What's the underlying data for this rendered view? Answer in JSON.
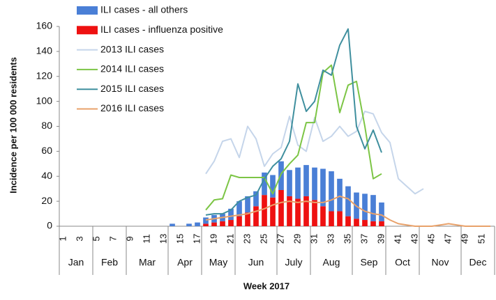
{
  "chart_data": {
    "type": "bar_line",
    "y_label": "Incidence per 100 000 residents",
    "x_label": "Week 2017",
    "categories": [
      "1",
      null,
      "3",
      null,
      "5",
      null,
      "7",
      null,
      "9",
      null,
      "11",
      null,
      "13",
      null,
      "15",
      null,
      "17",
      null,
      "19",
      null,
      "21",
      null,
      "23",
      null,
      "25",
      null,
      "27",
      null,
      "29",
      null,
      "31",
      null,
      "33",
      null,
      "35",
      null,
      "37",
      null,
      "39",
      null,
      "41",
      null,
      "43",
      null,
      "45",
      null,
      "47",
      null,
      "49",
      null,
      "51",
      null
    ],
    "months": [
      "Jan",
      "Feb",
      "Mar",
      "Apr",
      "May",
      "Jun",
      "July",
      "Aug",
      "Sep",
      "Oct",
      "Nov",
      "Dec"
    ],
    "ylim": [
      0,
      160
    ],
    "yticks": [
      0,
      20,
      40,
      60,
      80,
      100,
      120,
      140,
      160
    ],
    "series": [
      {
        "name": "ILI cases - all others",
        "kind": "bar",
        "color": "#4a7fd6",
        "values": [
          null,
          null,
          null,
          null,
          null,
          null,
          null,
          null,
          null,
          null,
          null,
          null,
          null,
          2,
          null,
          2,
          3,
          5,
          6,
          6,
          9,
          12,
          13,
          12,
          18,
          18,
          23,
          21,
          25,
          25,
          26,
          30,
          32,
          26,
          24,
          21,
          21,
          21,
          15,
          null,
          null,
          null,
          null,
          null,
          null,
          null,
          null,
          null,
          null,
          null,
          null,
          null
        ]
      },
      {
        "name": "ILI cases - influenza positive",
        "kind": "bar",
        "color": "#ee1111",
        "values": [
          null,
          null,
          null,
          null,
          null,
          null,
          null,
          null,
          null,
          null,
          null,
          null,
          null,
          null,
          null,
          null,
          null,
          2,
          3,
          4,
          5,
          8,
          11,
          16,
          25,
          23,
          29,
          24,
          22,
          24,
          21,
          16,
          12,
          12,
          8,
          6,
          5,
          4,
          4,
          null,
          null,
          null,
          null,
          null,
          null,
          null,
          null,
          null,
          null,
          null,
          null,
          null
        ]
      },
      {
        "name": "2013 ILI cases",
        "kind": "line",
        "color": "#c5d5ea",
        "values": [
          null,
          null,
          null,
          null,
          null,
          null,
          null,
          null,
          null,
          null,
          null,
          null,
          null,
          null,
          null,
          null,
          null,
          42,
          52,
          68,
          70,
          55,
          80,
          70,
          48,
          58,
          63,
          88,
          65,
          60,
          87,
          68,
          72,
          80,
          72,
          76,
          92,
          90,
          75,
          67,
          38,
          32,
          26,
          30,
          null,
          null,
          null,
          null,
          null,
          null,
          null,
          null
        ]
      },
      {
        "name": "2014 ILI cases",
        "kind": "line",
        "color": "#7cc545",
        "values": [
          null,
          null,
          null,
          null,
          null,
          null,
          null,
          null,
          null,
          null,
          null,
          null,
          null,
          null,
          null,
          null,
          null,
          13,
          21,
          22,
          41,
          39,
          39,
          39,
          39,
          26,
          42,
          50,
          57,
          83,
          83,
          123,
          129,
          91,
          113,
          116,
          80,
          38,
          42,
          null,
          null,
          null,
          null,
          null,
          null,
          null,
          null,
          null,
          null,
          null,
          null,
          null
        ]
      },
      {
        "name": "2015 ILI cases",
        "kind": "line",
        "color": "#3f8f9e",
        "values": [
          null,
          null,
          null,
          null,
          null,
          null,
          null,
          null,
          null,
          null,
          null,
          null,
          null,
          null,
          null,
          null,
          null,
          9,
          10,
          10,
          13,
          20,
          23,
          25,
          38,
          48,
          54,
          68,
          114,
          92,
          100,
          125,
          121,
          145,
          158,
          80,
          62,
          77,
          59,
          null,
          null,
          null,
          null,
          null,
          null,
          null,
          null,
          null,
          null,
          null,
          null,
          null
        ]
      },
      {
        "name": "2016 ILI cases",
        "kind": "line",
        "color": "#e8a16a",
        "values": [
          null,
          null,
          null,
          null,
          null,
          null,
          null,
          null,
          null,
          null,
          null,
          null,
          null,
          null,
          null,
          null,
          null,
          5,
          6,
          7,
          8,
          9,
          10,
          12,
          14,
          17,
          19,
          20,
          19,
          20,
          19,
          19,
          21,
          24,
          22,
          16,
          12,
          10,
          9,
          5,
          2,
          1,
          0,
          0,
          0,
          1,
          2,
          1,
          0,
          0,
          0,
          0
        ]
      }
    ]
  }
}
